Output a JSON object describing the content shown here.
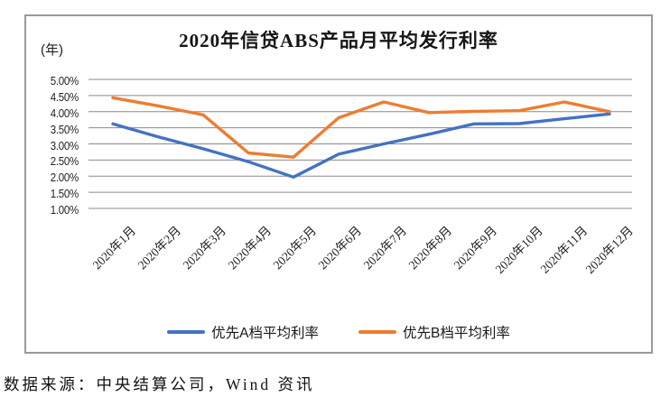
{
  "caption": "数据来源：中央结算公司，Wind 资讯",
  "colors": {
    "grid": "#8a8a8a",
    "frame": "#9a9a9a",
    "series_a": "#4472C4",
    "series_b": "#ED7D31"
  },
  "chart_data": {
    "type": "line",
    "title": "2020年信贷ABS产品月平均发行利率",
    "unit_label": "(年)",
    "xlabel": "",
    "ylabel": "",
    "categories": [
      "2020年1月",
      "2020年2月",
      "2020年3月",
      "2020年4月",
      "2020年5月",
      "2020年6月",
      "2020年7月",
      "2020年8月",
      "2020年9月",
      "2020年10月",
      "2020年11月",
      "2020年12月"
    ],
    "series": [
      {
        "name": "优先A档平均利率",
        "color": "#4472C4",
        "values": [
          3.62,
          3.22,
          2.85,
          2.45,
          1.97,
          2.68,
          3.0,
          3.3,
          3.62,
          3.63,
          3.78,
          3.93
        ]
      },
      {
        "name": "优先B档平均利率",
        "color": "#ED7D31",
        "values": [
          4.43,
          4.18,
          3.9,
          2.72,
          2.59,
          3.81,
          4.3,
          3.97,
          4.01,
          4.03,
          4.3,
          4.0
        ]
      }
    ],
    "y_ticks": [
      "5.00%",
      "4.50%",
      "4.00%",
      "3.50%",
      "3.00%",
      "2.50%",
      "2.00%",
      "1.50%",
      "1.00%"
    ],
    "ylim": [
      1.0,
      5.0
    ],
    "y_step": 0.5,
    "grid": true,
    "legend_position": "bottom"
  }
}
